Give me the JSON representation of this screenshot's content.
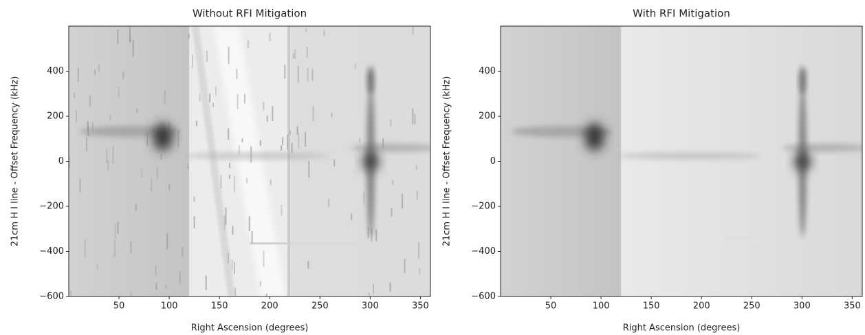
{
  "chart_data": [
    {
      "type": "image",
      "title": "Without RFI Mitigation",
      "xlabel": "Right Ascension (degrees)",
      "ylabel": "21cm  H I line - Offset Frequency (kHz)",
      "xlim": [
        0,
        360
      ],
      "ylim": [
        -600,
        600
      ],
      "xticks": [
        50,
        100,
        150,
        200,
        250,
        300,
        350
      ],
      "yticks": [
        {
          "value": -600,
          "label": "−600"
        },
        {
          "value": -400,
          "label": "−400"
        },
        {
          "value": -200,
          "label": "−200"
        },
        0,
        200,
        400
      ],
      "rfi": true
    },
    {
      "type": "image",
      "title": "With RFI Mitigation",
      "xlabel": "Right Ascension (degrees)",
      "ylabel": "21cm  H I line - Offset Frequency (kHz)",
      "xlim": [
        0,
        360
      ],
      "ylim": [
        -600,
        600
      ],
      "xticks": [
        50,
        100,
        150,
        200,
        250,
        300,
        350
      ],
      "yticks": [
        {
          "value": -600,
          "label": "−600"
        },
        {
          "value": -400,
          "label": "−400"
        },
        {
          "value": -200,
          "label": "−200"
        },
        0,
        200,
        400
      ],
      "rfi": false
    }
  ]
}
